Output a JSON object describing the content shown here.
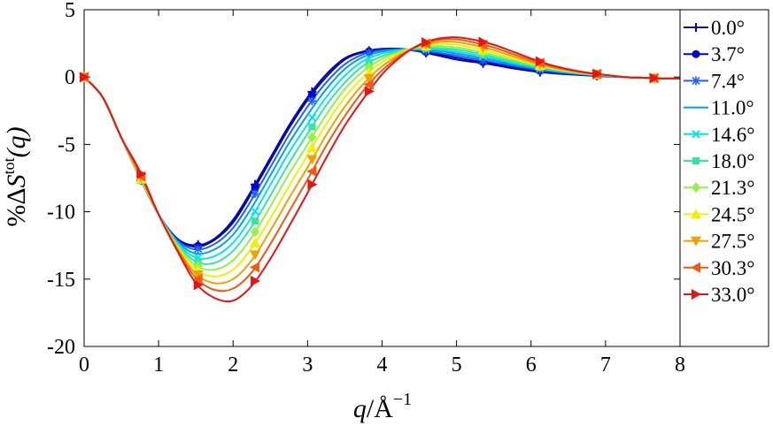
{
  "chart_data": {
    "type": "line",
    "xlabel_parts": {
      "var": "q",
      "slash": "/Å",
      "exp": "−1"
    },
    "ylabel_parts": {
      "prefix": "%",
      "delta": "Δ",
      "var": "S",
      "sup": "tot",
      "arg": "(q)"
    },
    "xlim": [
      0,
      8
    ],
    "ylim": [
      -20,
      5
    ],
    "xticks": [
      0,
      1,
      2,
      3,
      4,
      5,
      6,
      7,
      8
    ],
    "yticks": [
      5,
      0,
      -5,
      -10,
      -15,
      -20
    ],
    "xtick_labels": [
      "0",
      "1",
      "2",
      "3",
      "4",
      "5",
      "6",
      "7",
      "8"
    ],
    "ytick_labels": [
      "5",
      "0",
      "-5",
      "-10",
      "-15",
      "-20"
    ],
    "legend_position": "right-outside",
    "x": [
      0,
      0.25,
      0.5,
      0.75,
      1.0,
      1.25,
      1.5,
      1.75,
      2.0,
      2.25,
      2.5,
      2.75,
      3.0,
      3.25,
      3.5,
      3.75,
      4.0,
      4.25,
      4.5,
      4.75,
      5.0,
      5.25,
      5.5,
      5.75,
      6.0,
      6.25,
      6.5,
      6.75,
      7.0,
      7.25,
      7.5,
      7.75,
      8.0
    ],
    "marker_x": [
      0,
      0.765,
      1.53,
      2.295,
      3.06,
      3.825,
      4.59,
      5.355,
      6.12,
      6.885,
      7.65
    ],
    "series": [
      {
        "name": "0.0°",
        "color": "#0a0a8c",
        "marker": "plus",
        "values": [
          0,
          -1.5,
          -4.5,
          -7.5,
          -10.2,
          -12.0,
          -12.5,
          -12.0,
          -10.6,
          -8.4,
          -6.0,
          -3.6,
          -1.5,
          0.2,
          1.4,
          1.9,
          2.1,
          2.1,
          1.9,
          1.6,
          1.3,
          1.1,
          0.9,
          0.65,
          0.45,
          0.3,
          0.2,
          0.12,
          0.05,
          0.0,
          -0.05,
          -0.1,
          -0.1
        ]
      },
      {
        "name": "3.7°",
        "color": "#0000d8",
        "marker": "circle",
        "values": [
          0,
          -1.5,
          -4.5,
          -7.5,
          -10.2,
          -12.0,
          -12.6,
          -12.1,
          -10.8,
          -8.6,
          -6.2,
          -3.8,
          -1.7,
          0.0,
          1.3,
          1.85,
          2.05,
          2.05,
          1.95,
          1.7,
          1.45,
          1.2,
          1.0,
          0.75,
          0.55,
          0.38,
          0.25,
          0.15,
          0.07,
          0.0,
          -0.05,
          -0.1,
          -0.1
        ]
      },
      {
        "name": "7.4°",
        "color": "#1e64f0",
        "marker": "asterisk",
        "values": [
          0,
          -1.5,
          -4.5,
          -7.5,
          -10.2,
          -12.1,
          -12.8,
          -12.4,
          -11.2,
          -9.1,
          -6.7,
          -4.3,
          -2.2,
          -0.4,
          0.95,
          1.7,
          2.0,
          2.05,
          2.0,
          1.8,
          1.6,
          1.35,
          1.1,
          0.85,
          0.62,
          0.43,
          0.28,
          0.17,
          0.08,
          0.0,
          -0.05,
          -0.1,
          -0.1
        ]
      },
      {
        "name": "11.0°",
        "color": "#00a0f0",
        "marker": "line",
        "values": [
          0,
          -1.5,
          -4.5,
          -7.5,
          -10.2,
          -12.2,
          -13.1,
          -12.8,
          -11.7,
          -9.7,
          -7.3,
          -4.9,
          -2.8,
          -0.9,
          0.6,
          1.5,
          1.9,
          2.05,
          2.05,
          1.95,
          1.75,
          1.5,
          1.25,
          0.95,
          0.7,
          0.48,
          0.32,
          0.19,
          0.09,
          0.0,
          -0.05,
          -0.1,
          -0.1
        ]
      },
      {
        "name": "14.6°",
        "color": "#00e6f0",
        "marker": "cross",
        "values": [
          0,
          -1.5,
          -4.5,
          -7.5,
          -10.2,
          -12.3,
          -13.4,
          -13.3,
          -12.3,
          -10.4,
          -8.0,
          -5.6,
          -3.5,
          -1.5,
          0.1,
          1.2,
          1.75,
          2.0,
          2.1,
          2.05,
          1.9,
          1.65,
          1.38,
          1.05,
          0.78,
          0.54,
          0.36,
          0.21,
          0.1,
          0.0,
          -0.05,
          -0.1,
          -0.1
        ]
      },
      {
        "name": "18.0°",
        "color": "#34e6a0",
        "marker": "square",
        "values": [
          0,
          -1.5,
          -4.5,
          -7.5,
          -10.2,
          -12.4,
          -13.7,
          -13.8,
          -12.9,
          -11.1,
          -8.8,
          -6.4,
          -4.2,
          -2.1,
          -0.4,
          0.85,
          1.55,
          1.95,
          2.15,
          2.15,
          2.05,
          1.8,
          1.5,
          1.15,
          0.85,
          0.59,
          0.39,
          0.23,
          0.11,
          0.0,
          -0.05,
          -0.1,
          -0.1
        ]
      },
      {
        "name": "21.3°",
        "color": "#96f046",
        "marker": "diamond",
        "values": [
          0,
          -1.5,
          -4.5,
          -7.4,
          -10.2,
          -12.5,
          -14.0,
          -14.3,
          -13.6,
          -11.9,
          -9.6,
          -7.2,
          -5.0,
          -2.8,
          -0.9,
          0.45,
          1.35,
          1.9,
          2.2,
          2.3,
          2.2,
          1.95,
          1.65,
          1.28,
          0.93,
          0.64,
          0.42,
          0.25,
          0.12,
          0.0,
          -0.05,
          -0.1,
          -0.1
        ]
      },
      {
        "name": "24.5°",
        "color": "#f0f000",
        "marker": "triangle-up",
        "values": [
          0,
          -1.5,
          -4.5,
          -7.4,
          -10.2,
          -12.6,
          -14.3,
          -14.8,
          -14.3,
          -12.7,
          -10.5,
          -8.1,
          -5.8,
          -3.5,
          -1.5,
          0.0,
          1.1,
          1.8,
          2.25,
          2.45,
          2.4,
          2.15,
          1.82,
          1.42,
          1.02,
          0.7,
          0.46,
          0.27,
          0.13,
          0.0,
          -0.05,
          -0.1,
          -0.1
        ]
      },
      {
        "name": "27.5°",
        "color": "#f0a000",
        "marker": "triangle-down",
        "values": [
          0,
          -1.5,
          -4.5,
          -7.3,
          -10.2,
          -12.7,
          -14.6,
          -15.3,
          -15.0,
          -13.6,
          -11.4,
          -9.0,
          -6.7,
          -4.3,
          -2.2,
          -0.5,
          0.8,
          1.7,
          2.3,
          2.6,
          2.6,
          2.35,
          2.0,
          1.56,
          1.12,
          0.76,
          0.5,
          0.29,
          0.14,
          0.0,
          -0.05,
          -0.1,
          -0.1
        ]
      },
      {
        "name": "30.3°",
        "color": "#f05a14",
        "marker": "triangle-left",
        "values": [
          0,
          -1.5,
          -4.5,
          -7.2,
          -10.2,
          -12.8,
          -14.9,
          -15.8,
          -15.7,
          -14.5,
          -12.4,
          -10.0,
          -7.6,
          -5.1,
          -2.9,
          -1.0,
          0.5,
          1.6,
          2.35,
          2.75,
          2.8,
          2.55,
          2.2,
          1.72,
          1.25,
          0.84,
          0.54,
          0.31,
          0.15,
          0.0,
          -0.05,
          -0.1,
          -0.1
        ]
      },
      {
        "name": "33.0°",
        "color": "#e61414",
        "marker": "triangle-right",
        "values": [
          0,
          -1.5,
          -4.5,
          -7.0,
          -10.2,
          -12.9,
          -15.3,
          -16.4,
          -16.6,
          -15.5,
          -13.5,
          -11.1,
          -8.6,
          -6.0,
          -3.6,
          -1.6,
          0.2,
          1.5,
          2.4,
          2.85,
          2.95,
          2.75,
          2.4,
          1.9,
          1.38,
          0.92,
          0.58,
          0.33,
          0.16,
          0.0,
          -0.05,
          -0.1,
          -0.1
        ]
      }
    ]
  }
}
